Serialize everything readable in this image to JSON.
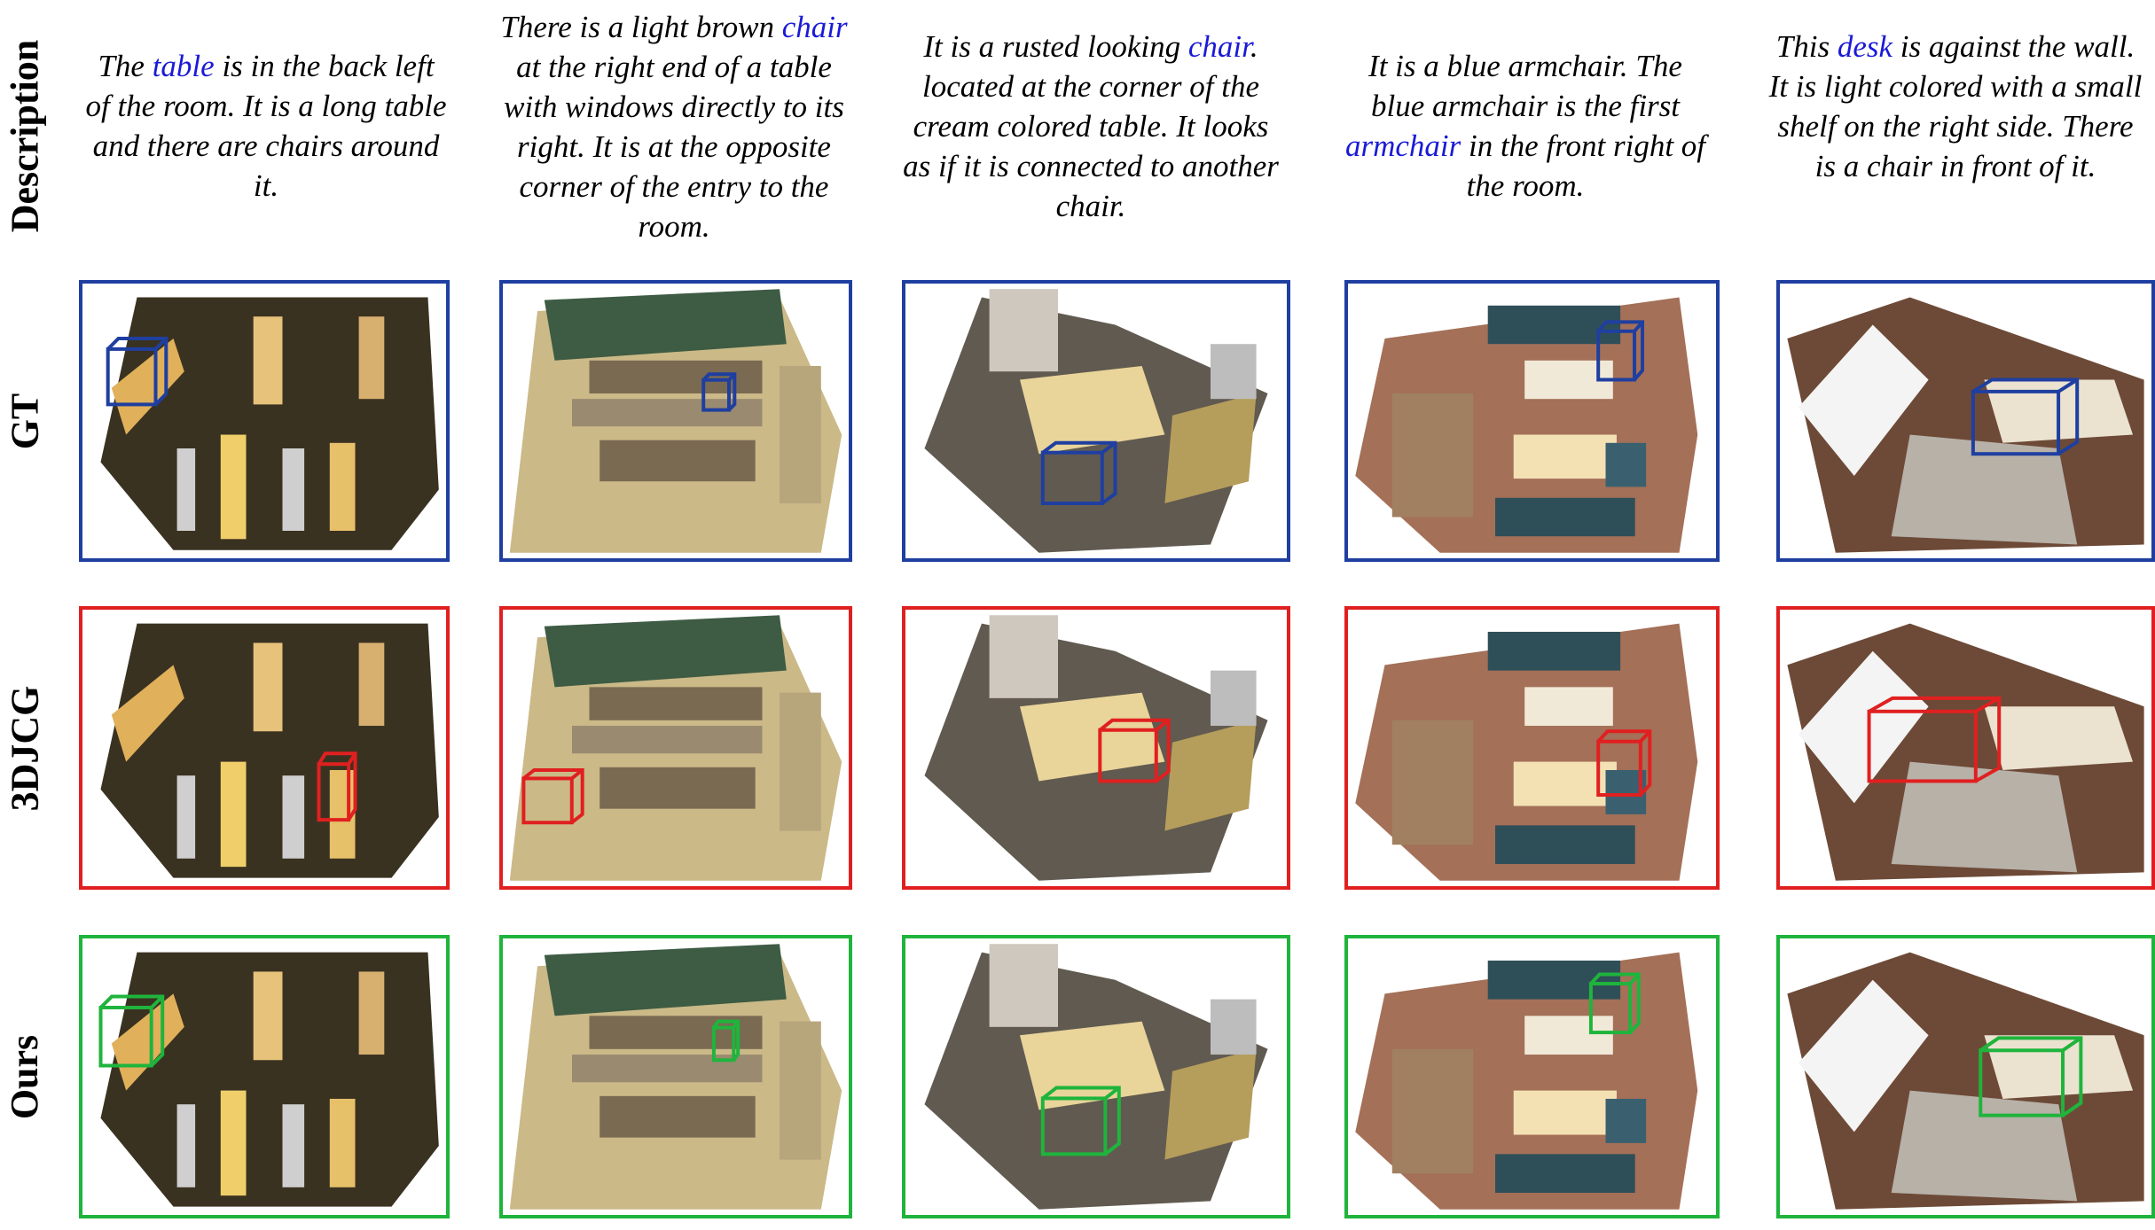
{
  "rows": {
    "description": "Description",
    "gt": "GT",
    "baseline": "3DJCG",
    "ours": "Ours"
  },
  "descriptions": [
    {
      "pre": "The ",
      "highlight": "table",
      "post": " is in the back left of the room. It is a long table and there are chairs around it."
    },
    {
      "pre": "There is a light brown ",
      "highlight": "chair",
      "post": " at the right end of a table with windows directly to its right. It is at the opposite corner of the entry to the room."
    },
    {
      "pre": "It is a rusted looking ",
      "highlight": "chair",
      "post": ". located at the corner of the cream colored table. It looks as if it is connected to another chair."
    },
    {
      "pre": "It is a blue armchair. The blue armchair is the first ",
      "highlight": "armchair",
      "post": " in the front right of the room."
    },
    {
      "pre": "This ",
      "highlight": "desk",
      "post": " is against the wall. It is light colored with a small shelf on the right side. There is a chair in front of it."
    }
  ],
  "colors": {
    "gt": "#1f3fa0",
    "baseline": "#e02020",
    "ours": "#1fb43c",
    "highlight": "#1a1ad6"
  }
}
